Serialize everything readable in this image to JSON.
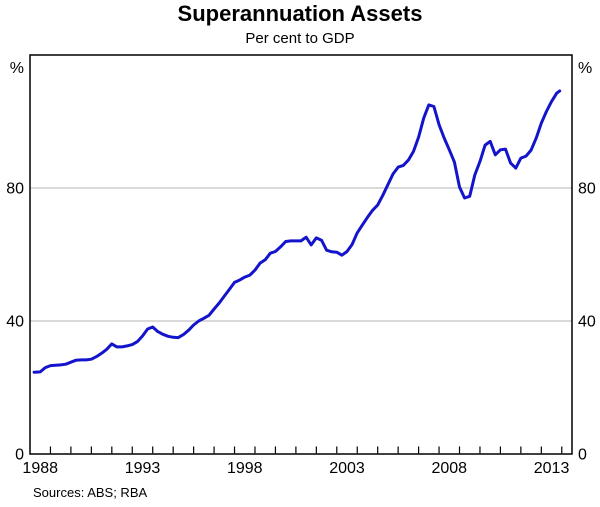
{
  "page": {
    "title": "Superannuation Assets",
    "subtitle": "Per cent to GDP",
    "footer": "Sources: ABS; RBA"
  },
  "colors": {
    "background": "#ffffff",
    "text": "#000000",
    "axis": "#000000",
    "grid": "#b3b3b3",
    "line": "#1414cc"
  },
  "chart_data": {
    "type": "line",
    "title": "Superannuation Assets",
    "subtitle": "Per cent to GDP",
    "xlabel": "",
    "ylabel": "Per cent of GDP",
    "unit_label": "%",
    "xlim": [
      1988,
      2014.5
    ],
    "ylim": [
      0,
      120
    ],
    "grid": "horizontal",
    "legend_position": "none",
    "y_gridlines": [
      40,
      80
    ],
    "y_ticks": [
      {
        "value": 80,
        "label": "80"
      },
      {
        "value": 40,
        "label": "40"
      },
      {
        "value": 0,
        "label": "0"
      }
    ],
    "x_label_years": [
      1988,
      1993,
      1998,
      2003,
      2008,
      2013
    ],
    "x_minor_ticks": {
      "start": 1989,
      "end": 2014,
      "step": 1
    },
    "series": [
      {
        "name": "Superannuation assets (per cent to GDP)",
        "color": "#1414cc",
        "points": [
          [
            1988.2,
            24.6
          ],
          [
            1988.5,
            24.7
          ],
          [
            1988.75,
            26.0
          ],
          [
            1989.0,
            26.6
          ],
          [
            1989.25,
            26.7
          ],
          [
            1989.5,
            26.8
          ],
          [
            1989.75,
            27.0
          ],
          [
            1990.0,
            27.6
          ],
          [
            1990.25,
            28.2
          ],
          [
            1990.5,
            28.3
          ],
          [
            1990.75,
            28.3
          ],
          [
            1991.0,
            28.5
          ],
          [
            1991.25,
            29.3
          ],
          [
            1991.5,
            30.3
          ],
          [
            1991.75,
            31.5
          ],
          [
            1992.0,
            33.1
          ],
          [
            1992.25,
            32.2
          ],
          [
            1992.5,
            32.2
          ],
          [
            1992.75,
            32.5
          ],
          [
            1993.0,
            32.9
          ],
          [
            1993.25,
            33.8
          ],
          [
            1993.5,
            35.5
          ],
          [
            1993.75,
            37.6
          ],
          [
            1994.0,
            38.2
          ],
          [
            1994.25,
            36.8
          ],
          [
            1994.5,
            36.0
          ],
          [
            1994.75,
            35.4
          ],
          [
            1995.0,
            35.1
          ],
          [
            1995.25,
            35.0
          ],
          [
            1995.5,
            35.9
          ],
          [
            1995.75,
            37.2
          ],
          [
            1996.0,
            38.8
          ],
          [
            1996.25,
            40.0
          ],
          [
            1996.5,
            40.8
          ],
          [
            1996.75,
            41.7
          ],
          [
            1997.0,
            43.6
          ],
          [
            1997.25,
            45.4
          ],
          [
            1997.5,
            47.5
          ],
          [
            1997.75,
            49.5
          ],
          [
            1998.0,
            51.6
          ],
          [
            1998.25,
            52.3
          ],
          [
            1998.5,
            53.2
          ],
          [
            1998.75,
            53.8
          ],
          [
            1999.0,
            55.3
          ],
          [
            1999.25,
            57.4
          ],
          [
            1999.5,
            58.4
          ],
          [
            1999.75,
            60.4
          ],
          [
            2000.0,
            60.9
          ],
          [
            2000.25,
            62.3
          ],
          [
            2000.5,
            63.9
          ],
          [
            2000.75,
            64.1
          ],
          [
            2001.0,
            64.1
          ],
          [
            2001.25,
            64.1
          ],
          [
            2001.5,
            65.2
          ],
          [
            2001.75,
            62.9
          ],
          [
            2002.0,
            65.0
          ],
          [
            2002.25,
            64.3
          ],
          [
            2002.5,
            61.3
          ],
          [
            2002.75,
            60.8
          ],
          [
            2003.0,
            60.7
          ],
          [
            2003.25,
            59.8
          ],
          [
            2003.5,
            60.9
          ],
          [
            2003.75,
            63.0
          ],
          [
            2004.0,
            66.5
          ],
          [
            2004.25,
            68.9
          ],
          [
            2004.5,
            71.2
          ],
          [
            2004.75,
            73.3
          ],
          [
            2005.0,
            74.9
          ],
          [
            2005.25,
            77.8
          ],
          [
            2005.5,
            81.0
          ],
          [
            2005.75,
            84.2
          ],
          [
            2006.0,
            86.3
          ],
          [
            2006.25,
            86.8
          ],
          [
            2006.5,
            88.4
          ],
          [
            2006.75,
            91.0
          ],
          [
            2007.0,
            95.3
          ],
          [
            2007.25,
            101.0
          ],
          [
            2007.5,
            105.0
          ],
          [
            2007.75,
            104.5
          ],
          [
            2008.0,
            99.0
          ],
          [
            2008.25,
            95.0
          ],
          [
            2008.5,
            91.5
          ],
          [
            2008.75,
            87.8
          ],
          [
            2009.0,
            80.3
          ],
          [
            2009.25,
            77.0
          ],
          [
            2009.5,
            77.5
          ],
          [
            2009.75,
            83.9
          ],
          [
            2010.0,
            88.0
          ],
          [
            2010.25,
            92.9
          ],
          [
            2010.5,
            94.0
          ],
          [
            2010.75,
            90.0
          ],
          [
            2011.0,
            91.5
          ],
          [
            2011.25,
            91.7
          ],
          [
            2011.5,
            87.5
          ],
          [
            2011.75,
            86.0
          ],
          [
            2012.0,
            89.0
          ],
          [
            2012.25,
            89.6
          ],
          [
            2012.5,
            91.4
          ],
          [
            2012.75,
            95.0
          ],
          [
            2013.0,
            99.5
          ],
          [
            2013.25,
            103.0
          ],
          [
            2013.5,
            106.0
          ],
          [
            2013.75,
            108.5
          ],
          [
            2013.9,
            109.2
          ]
        ]
      }
    ]
  }
}
